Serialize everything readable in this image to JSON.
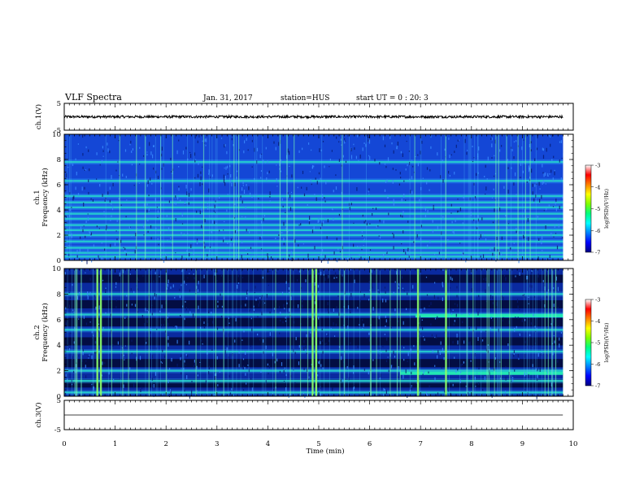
{
  "header": {
    "title": "VLF Spectra",
    "date": "Jan. 31, 2017",
    "station": "station=HUS",
    "start": "start UT =  0 : 20: 3"
  },
  "chart_data": [
    {
      "type": "line",
      "name": "ch1-waveform",
      "ylabel": "ch.1(V)",
      "ylim": [
        -5,
        5
      ],
      "yticks": [
        "5",
        "-5"
      ],
      "xlim": [
        0,
        10
      ],
      "baseline": 0,
      "noise_amplitude": 0.45,
      "trace_end": 9.8
    },
    {
      "type": "heatmap",
      "name": "ch1-spectrogram",
      "ylabel": "ch.1 Frequency (kHz)",
      "ylim": [
        0,
        10
      ],
      "yticks": [
        "0",
        "2",
        "4",
        "6",
        "8",
        "10"
      ],
      "xlim": [
        0,
        9.8
      ],
      "bands_khz": [
        0.3,
        0.6,
        1.0,
        1.5,
        2.0,
        2.4,
        2.8,
        3.3,
        3.7,
        4.2,
        4.6,
        5.1,
        6.3,
        7.8
      ],
      "background": "#1447d6",
      "band_color": "#22e6b4",
      "colorbar": {
        "label": "log(PSD)(V²/Hz)",
        "ticks": [
          "-3",
          "-4",
          "-5",
          "-6",
          "-7"
        ]
      }
    },
    {
      "type": "heatmap",
      "name": "ch2-spectrogram",
      "ylabel": "ch.2 Frequency (kHz)",
      "ylim": [
        0,
        10
      ],
      "yticks": [
        "0",
        "2",
        "4",
        "6",
        "8",
        "10"
      ],
      "xlim": [
        0,
        9.8
      ],
      "bands_khz": [
        0.3,
        1.2,
        2.0,
        3.5,
        5.2,
        6.4,
        8.0
      ],
      "late_bands": [
        {
          "khz": 6.3,
          "start": 6.9
        },
        {
          "khz": 1.8,
          "start": 6.6
        }
      ],
      "background": "#0a2aa0",
      "dark_stripes_khz": [
        1.0,
        2.6,
        4.3,
        5.8,
        7.2,
        9.2
      ],
      "band_color": "#22e6b4",
      "bursts_min": [
        0.65,
        0.72,
        4.88,
        4.95,
        6.95,
        7.5,
        9.82
      ],
      "colorbar": {
        "label": "log(PSD)(V²/Hz)",
        "ticks": [
          "-3",
          "-4",
          "-5",
          "-6",
          "-7"
        ]
      }
    },
    {
      "type": "line",
      "name": "ch3-waveform",
      "ylabel": "ch.3(V)",
      "ylim": [
        -5,
        5
      ],
      "yticks": [
        "5",
        "-5"
      ],
      "xlim": [
        0,
        10
      ],
      "baseline": 0,
      "noise_amplitude": 0,
      "trace_end": 9.8
    }
  ],
  "xaxis": {
    "label": "Time (min)",
    "ticks": [
      "0",
      "1",
      "2",
      "3",
      "4",
      "5",
      "6",
      "7",
      "8",
      "9",
      "10"
    ]
  },
  "colors": {
    "jet": [
      "#00007f",
      "#0000ff",
      "#0080ff",
      "#00ffff",
      "#00ff80",
      "#80ff00",
      "#ffff00",
      "#ff8000",
      "#ff0000",
      "#ffffff"
    ]
  }
}
